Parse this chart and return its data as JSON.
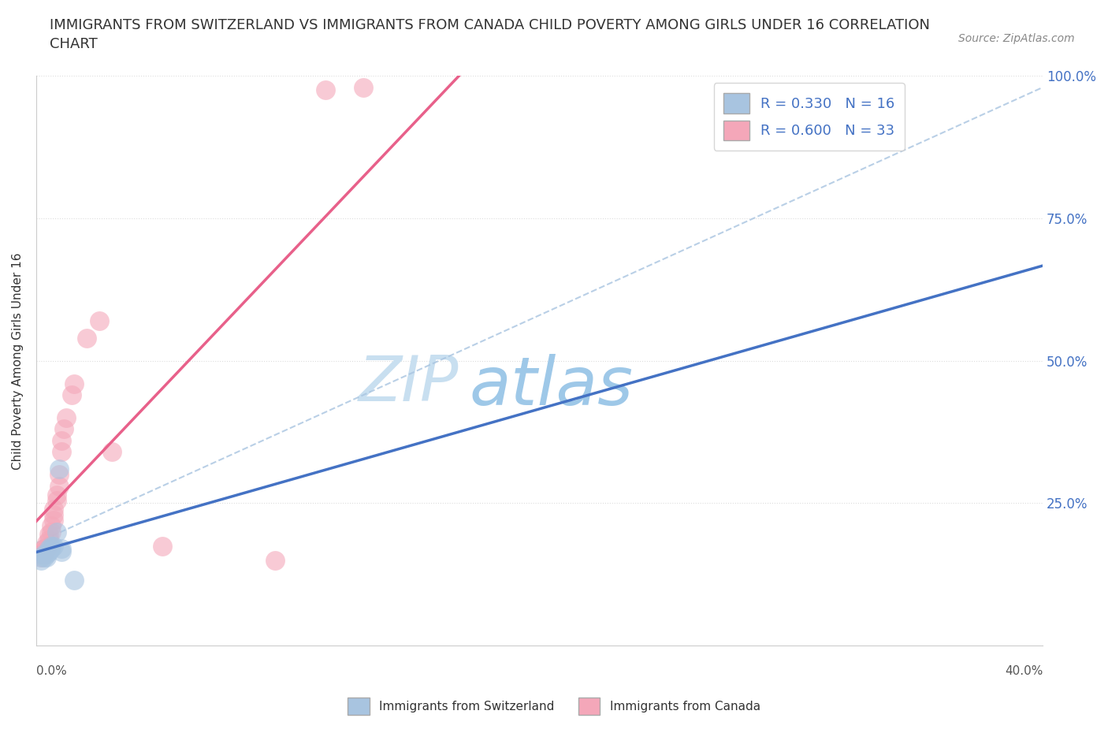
{
  "title": "IMMIGRANTS FROM SWITZERLAND VS IMMIGRANTS FROM CANADA CHILD POVERTY AMONG GIRLS UNDER 16 CORRELATION\nCHART",
  "source_text": "Source: ZipAtlas.com",
  "ylabel": "Child Poverty Among Girls Under 16",
  "xmin": 0.0,
  "xmax": 0.4,
  "ymin": 0.0,
  "ymax": 1.0,
  "yticks": [
    0.0,
    0.25,
    0.5,
    0.75,
    1.0
  ],
  "ytick_labels": [
    "",
    "25.0%",
    "50.0%",
    "75.0%",
    "100.0%"
  ],
  "watermark_zip": "ZIP",
  "watermark_atlas": "atlas",
  "legend_r1": "R = 0.330",
  "legend_n1": "N = 16",
  "legend_r2": "R = 0.600",
  "legend_n2": "N = 33",
  "swiss_color": "#a8c4e0",
  "canada_color": "#f4a7b9",
  "swiss_line_color": "#4472c4",
  "canada_line_color": "#e8608a",
  "dashed_line_color": "#a8c4e0",
  "swiss_scatter": [
    [
      0.002,
      0.15
    ],
    [
      0.002,
      0.155
    ],
    [
      0.003,
      0.155
    ],
    [
      0.003,
      0.16
    ],
    [
      0.004,
      0.155
    ],
    [
      0.004,
      0.16
    ],
    [
      0.005,
      0.165
    ],
    [
      0.005,
      0.17
    ],
    [
      0.006,
      0.17
    ],
    [
      0.006,
      0.175
    ],
    [
      0.007,
      0.175
    ],
    [
      0.008,
      0.2
    ],
    [
      0.009,
      0.31
    ],
    [
      0.01,
      0.165
    ],
    [
      0.01,
      0.17
    ],
    [
      0.015,
      0.115
    ]
  ],
  "canada_scatter": [
    [
      0.002,
      0.155
    ],
    [
      0.002,
      0.16
    ],
    [
      0.002,
      0.165
    ],
    [
      0.003,
      0.16
    ],
    [
      0.003,
      0.165
    ],
    [
      0.003,
      0.17
    ],
    [
      0.004,
      0.17
    ],
    [
      0.004,
      0.18
    ],
    [
      0.005,
      0.175
    ],
    [
      0.005,
      0.185
    ],
    [
      0.005,
      0.195
    ],
    [
      0.006,
      0.2
    ],
    [
      0.006,
      0.21
    ],
    [
      0.007,
      0.22
    ],
    [
      0.007,
      0.23
    ],
    [
      0.007,
      0.24
    ],
    [
      0.008,
      0.255
    ],
    [
      0.008,
      0.265
    ],
    [
      0.009,
      0.28
    ],
    [
      0.009,
      0.3
    ],
    [
      0.01,
      0.34
    ],
    [
      0.01,
      0.36
    ],
    [
      0.011,
      0.38
    ],
    [
      0.012,
      0.4
    ],
    [
      0.014,
      0.44
    ],
    [
      0.015,
      0.46
    ],
    [
      0.02,
      0.54
    ],
    [
      0.025,
      0.57
    ],
    [
      0.03,
      0.34
    ],
    [
      0.05,
      0.175
    ],
    [
      0.095,
      0.15
    ],
    [
      0.13,
      0.98
    ],
    [
      0.115,
      0.975
    ]
  ],
  "background_color": "#ffffff",
  "grid_color": "#dddddd",
  "title_fontsize": 13,
  "axis_label_fontsize": 11,
  "legend_fontsize": 13,
  "watermark_fontsize_zip": 58,
  "watermark_fontsize_atlas": 62,
  "source_fontsize": 10
}
